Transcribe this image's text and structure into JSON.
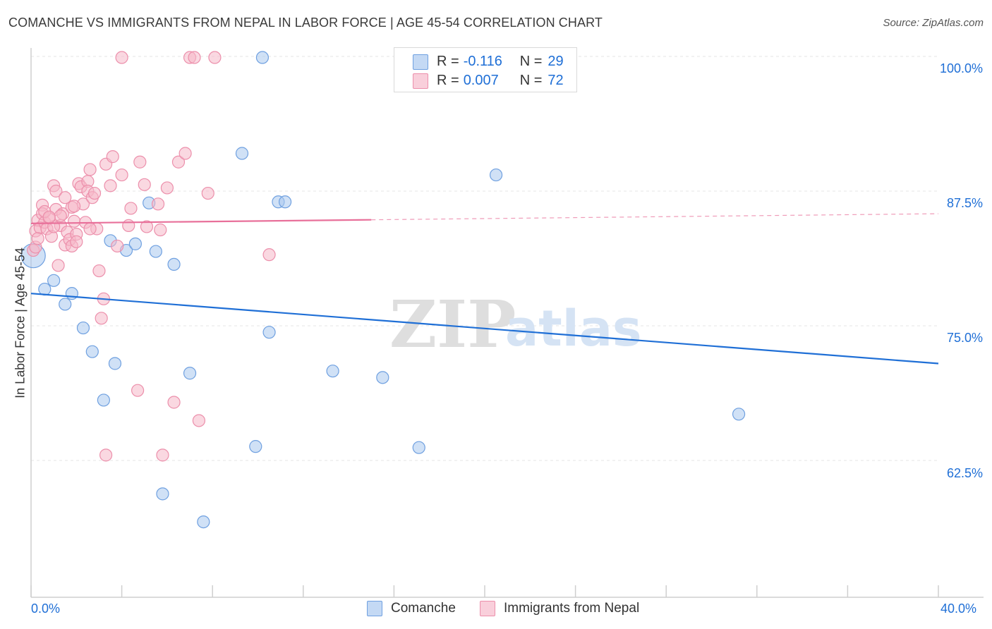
{
  "header": {
    "title": "COMANCHE VS IMMIGRANTS FROM NEPAL IN LABOR FORCE | AGE 45-54 CORRELATION CHART",
    "source": "Source: ZipAtlas.com"
  },
  "watermark": {
    "zip": "ZIP",
    "atlas": "atlas"
  },
  "legend": {
    "rows": [
      {
        "r_label": "R =",
        "r_value": "-0.116",
        "n_label": "N =",
        "n_value": "29",
        "color": "#aac8ef"
      },
      {
        "r_label": "R =",
        "r_value": "0.007",
        "n_label": "N =",
        "n_value": "72",
        "color": "#f6b8c9"
      }
    ]
  },
  "chart_data": {
    "type": "scatter",
    "title": "COMANCHE VS IMMIGRANTS FROM NEPAL IN LABOR FORCE | AGE 45-54 CORRELATION CHART",
    "xlabel": "",
    "ylabel": "In Labor Force | Age 45-54",
    "xlim": [
      0,
      40
    ],
    "ylim": [
      50,
      101.5
    ],
    "x_tick_labels": [
      "0.0%",
      "40.0%"
    ],
    "y_ticks": [
      62.5,
      75.0,
      87.5,
      100.0
    ],
    "y_tick_labels": [
      "62.5%",
      "75.0%",
      "87.5%",
      "100.0%"
    ],
    "grid": true,
    "series": [
      {
        "name": "Comanche",
        "color": "#aac8ef",
        "stroke": "#6fa0e0",
        "line_color": "#1f6fd6",
        "trend": {
          "x": [
            0,
            40
          ],
          "y": [
            78.0,
            71.5
          ],
          "dashed_from": null
        },
        "points": [
          [
            0.1,
            81.5
          ],
          [
            0.6,
            78.4
          ],
          [
            1.0,
            79.2
          ],
          [
            1.5,
            77.0
          ],
          [
            1.8,
            78.0
          ],
          [
            2.3,
            74.8
          ],
          [
            2.7,
            72.6
          ],
          [
            3.2,
            68.1
          ],
          [
            3.5,
            82.9
          ],
          [
            3.7,
            71.5
          ],
          [
            4.2,
            82.0
          ],
          [
            4.6,
            82.6
          ],
          [
            5.2,
            86.4
          ],
          [
            5.5,
            81.9
          ],
          [
            5.8,
            59.4
          ],
          [
            6.3,
            80.7
          ],
          [
            7.0,
            70.6
          ],
          [
            7.6,
            56.8
          ],
          [
            9.3,
            91.0
          ],
          [
            9.9,
            63.8
          ],
          [
            10.2,
            99.9
          ],
          [
            10.5,
            74.4
          ],
          [
            10.9,
            86.5
          ],
          [
            11.2,
            86.5
          ],
          [
            13.3,
            70.8
          ],
          [
            15.5,
            70.2
          ],
          [
            17.1,
            63.7
          ],
          [
            20.5,
            89.0
          ],
          [
            31.2,
            66.8
          ]
        ]
      },
      {
        "name": "Immigrants from Nepal",
        "color": "#f6b8c9",
        "stroke": "#ec8fab",
        "line_color": "#e8709a",
        "trend": {
          "x": [
            0,
            40
          ],
          "y": [
            84.5,
            85.4
          ],
          "dashed_from": 15.0
        },
        "points": [
          [
            0.1,
            82.0
          ],
          [
            0.2,
            83.8
          ],
          [
            0.3,
            84.8
          ],
          [
            0.4,
            84.1
          ],
          [
            0.5,
            86.2
          ],
          [
            0.5,
            85.4
          ],
          [
            0.6,
            84.6
          ],
          [
            0.7,
            84.0
          ],
          [
            0.8,
            85.0
          ],
          [
            0.9,
            83.3
          ],
          [
            1.0,
            88.0
          ],
          [
            1.1,
            85.8
          ],
          [
            1.1,
            87.5
          ],
          [
            1.2,
            80.6
          ],
          [
            1.3,
            84.3
          ],
          [
            1.4,
            85.4
          ],
          [
            1.5,
            82.5
          ],
          [
            1.6,
            83.7
          ],
          [
            1.7,
            83.0
          ],
          [
            1.8,
            86.0
          ],
          [
            1.8,
            82.4
          ],
          [
            1.9,
            84.7
          ],
          [
            2.0,
            83.5
          ],
          [
            2.1,
            88.2
          ],
          [
            2.2,
            87.9
          ],
          [
            2.3,
            86.3
          ],
          [
            2.4,
            84.6
          ],
          [
            2.5,
            88.4
          ],
          [
            2.5,
            87.5
          ],
          [
            2.6,
            89.5
          ],
          [
            2.7,
            86.9
          ],
          [
            2.8,
            87.3
          ],
          [
            2.9,
            84.0
          ],
          [
            3.0,
            80.1
          ],
          [
            3.1,
            75.7
          ],
          [
            3.2,
            77.5
          ],
          [
            3.3,
            90.0
          ],
          [
            3.5,
            88.0
          ],
          [
            3.6,
            90.7
          ],
          [
            3.8,
            82.4
          ],
          [
            4.0,
            89.0
          ],
          [
            4.3,
            84.3
          ],
          [
            4.4,
            85.9
          ],
          [
            4.7,
            69.0
          ],
          [
            4.8,
            90.2
          ],
          [
            5.0,
            88.1
          ],
          [
            5.1,
            84.2
          ],
          [
            5.6,
            86.3
          ],
          [
            5.7,
            83.9
          ],
          [
            5.8,
            63.0
          ],
          [
            6.0,
            87.8
          ],
          [
            6.3,
            67.9
          ],
          [
            6.5,
            90.2
          ],
          [
            6.8,
            91.0
          ],
          [
            7.0,
            99.9
          ],
          [
            7.4,
            66.2
          ],
          [
            7.8,
            87.3
          ],
          [
            8.1,
            99.9
          ],
          [
            4.0,
            99.9
          ],
          [
            7.2,
            99.9
          ],
          [
            10.5,
            81.6
          ],
          [
            3.3,
            63.0
          ],
          [
            0.2,
            82.3
          ],
          [
            0.6,
            85.6
          ],
          [
            1.0,
            84.2
          ],
          [
            1.5,
            86.9
          ],
          [
            2.0,
            82.8
          ],
          [
            0.3,
            83.1
          ],
          [
            1.3,
            85.2
          ],
          [
            2.6,
            84.0
          ],
          [
            1.9,
            86.1
          ],
          [
            0.8,
            85.1
          ]
        ]
      }
    ]
  },
  "bottom_legend": [
    "Comanche",
    "Immigrants from Nepal"
  ]
}
